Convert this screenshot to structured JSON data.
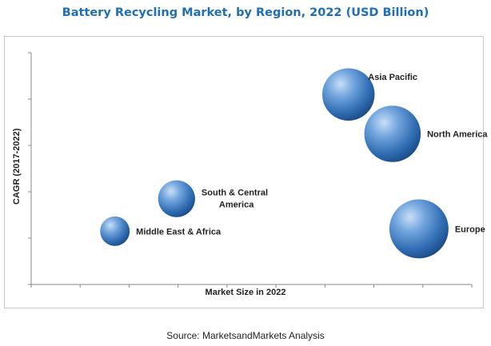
{
  "chart_data": {
    "type": "scatter",
    "title": "Battery Recycling Market, by Region, 2022 (USD Billion)",
    "xlabel": "Market Size in 2022",
    "ylabel": "CAGR (2017-2022)",
    "legend": "none",
    "grid": false,
    "tick_labels": "none",
    "series": [
      {
        "name": "Asia Pacific",
        "label_lines": [
          "Asia Pacific"
        ],
        "x": 7.2,
        "y": 8.2,
        "size": 0.78,
        "label_side": "right-top"
      },
      {
        "name": "North America",
        "label_lines": [
          "North America"
        ],
        "x": 8.2,
        "y": 6.5,
        "size": 0.84,
        "label_side": "right"
      },
      {
        "name": "South & Central America",
        "label_lines": [
          "South & Central",
          "America"
        ],
        "x": 3.3,
        "y": 3.7,
        "size": 0.55,
        "label_side": "right"
      },
      {
        "name": "Middle East & Africa",
        "label_lines": [
          "Middle East & Africa"
        ],
        "x": 1.9,
        "y": 2.3,
        "size": 0.44,
        "label_side": "right"
      },
      {
        "name": "Europe",
        "label_lines": [
          "Europe"
        ],
        "x": 8.8,
        "y": 2.4,
        "size": 0.88,
        "label_side": "right"
      }
    ],
    "xlim": [
      0,
      10
    ],
    "ylim": [
      0,
      10
    ]
  },
  "source": "Source:  MarketsandMarkets Analysis",
  "colors": {
    "title": "#1f6fb2",
    "bubble_light": "#9cc3ec",
    "bubble_mid": "#4a86c8",
    "bubble_dark": "#1f4f8a"
  }
}
